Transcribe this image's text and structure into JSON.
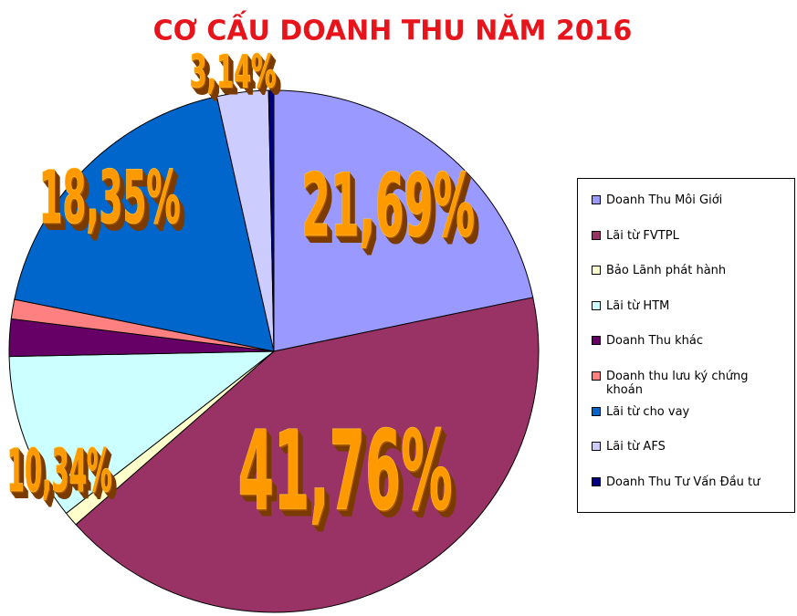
{
  "chart_data": {
    "type": "pie",
    "title": "CƠ CẤU DOANH THU NĂM 2016",
    "categories": [
      "Doanh Thu Môi Giới",
      "Lãi từ FVTPL",
      "Bảo Lãnh phát hành",
      "Lãi từ HTM",
      "Doanh Thu khác",
      "Doanh thu lưu ký chứng khoán",
      "Lãi từ cho vay",
      "Lãi từ AFS",
      "Doanh Thu Tư Vấn Đầu tư"
    ],
    "values": [
      21.69,
      41.76,
      0.9,
      10.34,
      2.3,
      1.2,
      18.35,
      3.14,
      0.32
    ],
    "value_labels": [
      "21,69%",
      "41,76%",
      null,
      "10,34%",
      null,
      null,
      "18,35%",
      "3,14%",
      null
    ],
    "colors": [
      "#9999ff",
      "#993366",
      "#ffffcc",
      "#ccffff",
      "#660066",
      "#ff8080",
      "#0066cc",
      "#ccccff",
      "#000080"
    ],
    "legend": "right"
  }
}
